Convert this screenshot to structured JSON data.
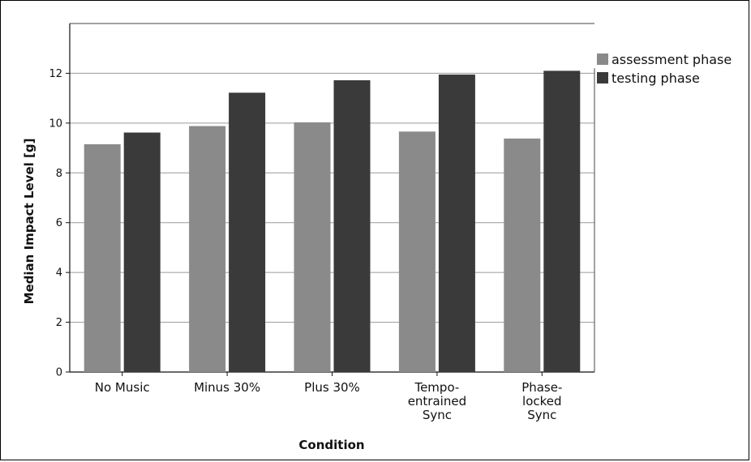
{
  "chart_data": {
    "type": "bar",
    "categories": [
      [
        "No Music"
      ],
      [
        "Minus 30%"
      ],
      [
        "Plus 30%"
      ],
      [
        "Tempo-",
        "entrained",
        "Sync"
      ],
      [
        "Phase-",
        "locked",
        "Sync"
      ]
    ],
    "series": [
      {
        "name": "assessment phase",
        "color": "#8a8a8a",
        "values": [
          9.15,
          9.88,
          10.03,
          9.66,
          9.38
        ]
      },
      {
        "name": "testing phase",
        "color": "#3a3a3a",
        "values": [
          9.62,
          11.22,
          11.72,
          11.95,
          12.1
        ]
      }
    ],
    "xlabel": "Condition",
    "ylabel": "Median Impact Level [g]",
    "ylim": [
      0,
      14
    ],
    "yticks": [
      0,
      2,
      4,
      6,
      8,
      10,
      12
    ],
    "grid": true,
    "legend_position": "right"
  }
}
